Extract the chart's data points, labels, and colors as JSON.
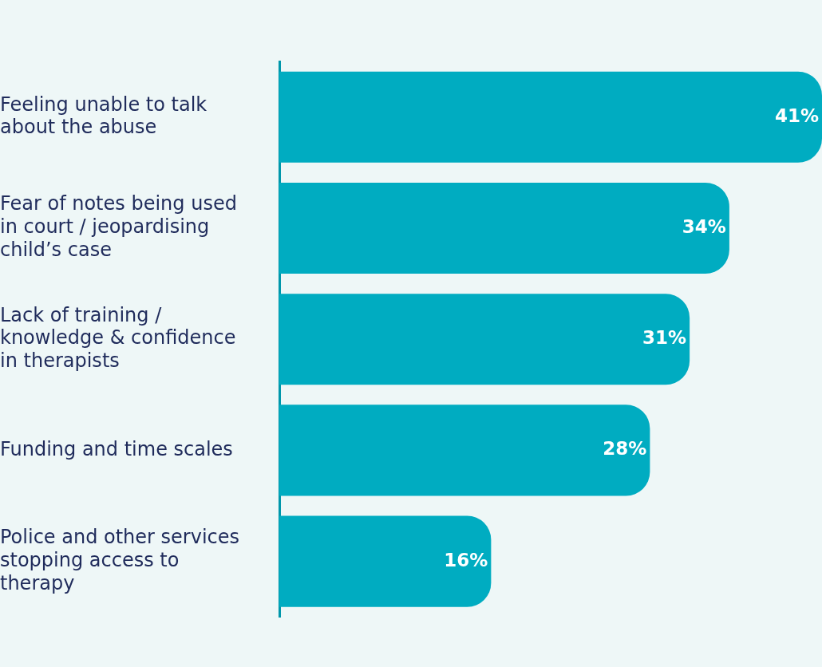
{
  "chart_data": {
    "type": "bar",
    "orientation": "horizontal",
    "categories": [
      "Feeling unable to talk about the abuse",
      "Fear of notes being used in court / jeopardising child’s case",
      "Lack of training / knowledge & confidence in therapists",
      "Funding and time scales",
      "Police and other services stopping access to therapy"
    ],
    "values": [
      41,
      34,
      31,
      28,
      16
    ],
    "value_labels": [
      "41%",
      "34%",
      "31%",
      "28%",
      "16%"
    ],
    "color": "#00acc1",
    "xlim": [
      0,
      41
    ],
    "tick_labels": "y",
    "grid": false,
    "legend": false
  }
}
